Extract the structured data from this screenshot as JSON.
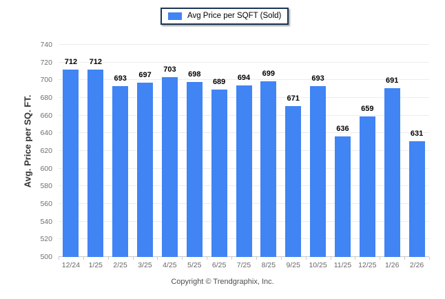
{
  "legend": {
    "label": "Avg Price per SQFT (Sold)"
  },
  "y_axis": {
    "title": "Avg. Price per SQ. FT.",
    "ticks": [
      500,
      520,
      540,
      560,
      580,
      600,
      620,
      640,
      660,
      680,
      700,
      720,
      740
    ]
  },
  "footer": {
    "text": "Copyright © Trendgraphix, Inc."
  },
  "colors": {
    "bar": "#4184f4",
    "grid": "#ececec",
    "axis": "#c9c9c9",
    "legend_border": "#1c3452",
    "value_label": "#000000",
    "tick_label": "#6e6e6e"
  },
  "chart_data": {
    "type": "bar",
    "title": "Avg Price per SQFT (Sold)",
    "xlabel": "",
    "ylabel": "Avg. Price per SQ. FT.",
    "categories": [
      "12/24",
      "1/25",
      "2/25",
      "3/25",
      "4/25",
      "5/25",
      "6/25",
      "7/25",
      "8/25",
      "9/25",
      "10/25",
      "11/25",
      "12/25",
      "1/26",
      "2/26"
    ],
    "values": [
      712,
      712,
      693,
      697,
      703,
      698,
      689,
      694,
      699,
      671,
      693,
      636,
      659,
      691,
      631
    ],
    "series": [
      {
        "name": "Avg Price per SQFT (Sold)",
        "values": [
          712,
          712,
          693,
          697,
          703,
          698,
          689,
          694,
          699,
          671,
          693,
          636,
          659,
          691,
          631
        ]
      }
    ],
    "ylim": [
      500,
      740
    ],
    "ytick_step": 20,
    "grid": true,
    "legend_position": "top-center",
    "value_labels_shown": true
  }
}
